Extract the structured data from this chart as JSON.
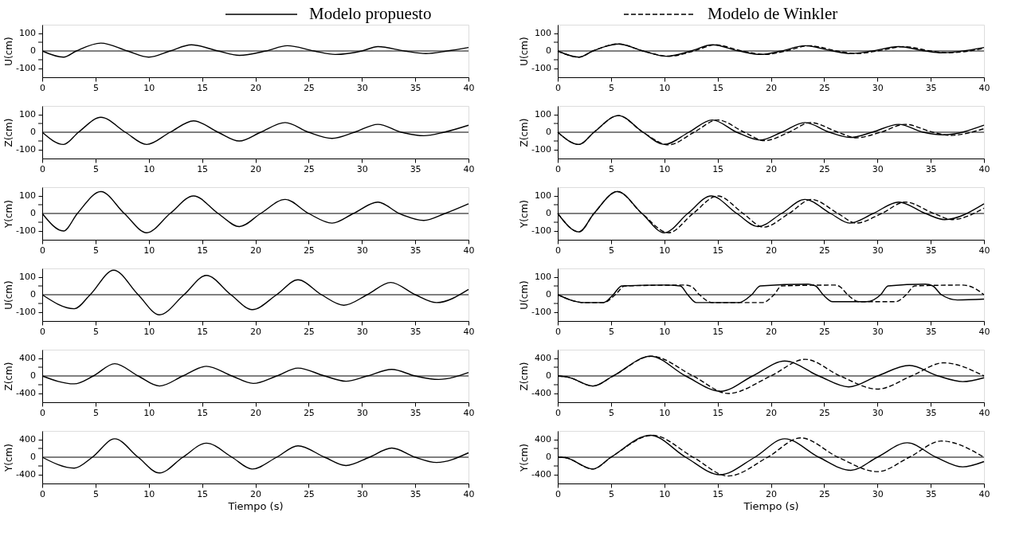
{
  "chart_data": [
    {
      "type": "line",
      "ylabel": "U(cm)",
      "xlim": [
        0,
        40
      ],
      "xticks": [
        0,
        5,
        10,
        15,
        20,
        25,
        30,
        35,
        40
      ],
      "ylim": [
        -150,
        150
      ],
      "yticks": [
        -100,
        {
          "value": -50,
          "label": null
        },
        0,
        {
          "value": 50,
          "label": null
        },
        100
      ],
      "grid": false,
      "ref_lines": [
        {
          "axis": "y",
          "value": 0
        }
      ],
      "series": [
        {
          "color": "#000000",
          "line_style": "solid",
          "x": [
            0,
            2,
            3.2,
            5.5,
            8,
            10,
            12,
            14,
            16.5,
            18.5,
            21,
            23,
            25.5,
            27.5,
            30,
            31.5,
            34,
            36,
            38,
            40
          ],
          "values": [
            0,
            -35,
            0,
            45,
            0,
            -35,
            0,
            35,
            0,
            -25,
            0,
            30,
            0,
            -20,
            0,
            25,
            0,
            -15,
            0,
            20
          ]
        }
      ]
    },
    {
      "type": "line",
      "ylabel": "U(cm)",
      "xlim": [
        0,
        40
      ],
      "xticks": [
        0,
        5,
        10,
        15,
        20,
        25,
        30,
        35,
        40
      ],
      "ylim": [
        -150,
        150
      ],
      "yticks": [
        -100,
        {
          "value": -50,
          "label": null
        },
        0,
        {
          "value": 50,
          "label": null
        },
        100
      ],
      "grid": false,
      "legend": "top",
      "ref_lines": [
        {
          "axis": "y",
          "value": 0
        }
      ],
      "series": [
        {
          "name": "Modelo propuesto",
          "color": "#000000",
          "line_style": "solid",
          "x": [
            0,
            2,
            3.3,
            5.7,
            8,
            10.2,
            12.5,
            14.5,
            17,
            19,
            21,
            23.2,
            25.8,
            27.5,
            29.5,
            32,
            34.5,
            36,
            40
          ],
          "values": [
            0,
            -35,
            0,
            40,
            0,
            -30,
            0,
            35,
            0,
            -20,
            0,
            30,
            0,
            -15,
            0,
            25,
            0,
            -10,
            20
          ]
        },
        {
          "name": "Modelo de Winkler",
          "color": "#000000",
          "line_style": "dashed",
          "x": [
            0,
            2,
            3.3,
            5.7,
            8,
            10.4,
            12.8,
            14.8,
            17.3,
            19.4,
            21.4,
            23.6,
            26.2,
            28,
            30,
            32.5,
            35,
            36.7,
            40
          ],
          "values": [
            0,
            -35,
            0,
            40,
            0,
            -30,
            0,
            35,
            0,
            -20,
            0,
            30,
            0,
            -15,
            0,
            25,
            0,
            -10,
            15
          ]
        }
      ]
    },
    {
      "type": "line",
      "ylabel": "Z(cm)",
      "xlim": [
        0,
        40
      ],
      "xticks": [
        0,
        5,
        10,
        15,
        20,
        25,
        30,
        35,
        40
      ],
      "ylim": [
        -150,
        150
      ],
      "yticks": [
        -100,
        {
          "value": -50,
          "label": null
        },
        0,
        {
          "value": 50,
          "label": null
        },
        100
      ],
      "grid": false,
      "ref_lines": [
        {
          "axis": "y",
          "value": 0
        }
      ],
      "series": [
        {
          "color": "#000000",
          "line_style": "solid",
          "x": [
            0,
            2,
            3.4,
            5.5,
            7.8,
            9.8,
            12,
            14.2,
            16.5,
            18.5,
            20.5,
            22.8,
            25,
            27.2,
            29.3,
            31.5,
            33.7,
            35.8,
            37.7,
            40
          ],
          "values": [
            0,
            -70,
            0,
            85,
            0,
            -70,
            0,
            65,
            0,
            -50,
            0,
            55,
            0,
            -35,
            0,
            45,
            0,
            -20,
            0,
            40
          ]
        }
      ]
    },
    {
      "type": "line",
      "ylabel": "Z(cm)",
      "xlim": [
        0,
        40
      ],
      "xticks": [
        0,
        5,
        10,
        15,
        20,
        25,
        30,
        35,
        40
      ],
      "ylim": [
        -150,
        150
      ],
      "yticks": [
        -100,
        {
          "value": -50,
          "label": null
        },
        0,
        {
          "value": 50,
          "label": null
        },
        100
      ],
      "grid": false,
      "ref_lines": [
        {
          "axis": "y",
          "value": 0
        }
      ],
      "series": [
        {
          "color": "#000000",
          "line_style": "solid",
          "x": [
            0,
            2,
            3.4,
            5.7,
            8,
            10,
            12.3,
            14.5,
            16.8,
            19,
            21,
            23.2,
            25.5,
            27.5,
            29.5,
            32,
            34.3,
            36.2,
            40
          ],
          "values": [
            0,
            -70,
            0,
            95,
            0,
            -70,
            0,
            70,
            0,
            -45,
            0,
            55,
            0,
            -30,
            0,
            45,
            0,
            -15,
            40
          ]
        },
        {
          "color": "#000000",
          "line_style": "dashed",
          "x": [
            0,
            2,
            3.4,
            5.7,
            8,
            10.4,
            12.8,
            15,
            17.5,
            19.4,
            21.7,
            23.7,
            26.3,
            28,
            30.3,
            32.6,
            35.2,
            36.8,
            40
          ],
          "values": [
            0,
            -70,
            0,
            95,
            0,
            -72,
            0,
            70,
            0,
            -48,
            0,
            55,
            0,
            -32,
            0,
            45,
            0,
            -18,
            20
          ]
        }
      ]
    },
    {
      "type": "line",
      "ylabel": "Y(cm)",
      "xlim": [
        0,
        40
      ],
      "xticks": [
        0,
        5,
        10,
        15,
        20,
        25,
        30,
        35,
        40
      ],
      "ylim": [
        -150,
        150
      ],
      "yticks": [
        -100,
        {
          "value": -50,
          "label": null
        },
        0,
        {
          "value": 50,
          "label": null
        },
        100
      ],
      "grid": false,
      "ref_lines": [
        {
          "axis": "y",
          "value": 0
        }
      ],
      "series": [
        {
          "color": "#000000",
          "line_style": "solid",
          "x": [
            0,
            2,
            3.3,
            5.5,
            7.7,
            9.8,
            12,
            14.2,
            16.5,
            18.5,
            20.5,
            22.8,
            25,
            27.2,
            29.2,
            31.5,
            33.5,
            35.8,
            37.8,
            40
          ],
          "values": [
            0,
            -100,
            0,
            125,
            0,
            -110,
            0,
            100,
            0,
            -75,
            0,
            80,
            0,
            -55,
            0,
            65,
            0,
            -40,
            0,
            55
          ]
        }
      ]
    },
    {
      "type": "line",
      "ylabel": "Y(cm)",
      "xlim": [
        0,
        40
      ],
      "xticks": [
        0,
        5,
        10,
        15,
        20,
        25,
        30,
        35,
        40
      ],
      "ylim": [
        -150,
        150
      ],
      "yticks": [
        -100,
        {
          "value": -50,
          "label": null
        },
        0,
        {
          "value": 50,
          "label": null
        },
        100
      ],
      "grid": false,
      "ref_lines": [
        {
          "axis": "y",
          "value": 0
        }
      ],
      "series": [
        {
          "color": "#000000",
          "line_style": "solid",
          "x": [
            0,
            2,
            3.4,
            5.6,
            7.9,
            10,
            12.2,
            14.4,
            16.8,
            18.8,
            21,
            23.2,
            25.6,
            27.4,
            29.6,
            32,
            34.5,
            36.3,
            40
          ],
          "values": [
            0,
            -105,
            0,
            125,
            0,
            -110,
            0,
            100,
            0,
            -75,
            0,
            80,
            0,
            -55,
            0,
            65,
            0,
            -35,
            55
          ]
        },
        {
          "color": "#000000",
          "line_style": "dashed",
          "x": [
            0,
            2,
            3.4,
            5.6,
            7.9,
            10.4,
            12.7,
            15,
            17.4,
            19.3,
            21.7,
            23.8,
            26.3,
            28,
            30.4,
            32.6,
            35.3,
            37,
            40
          ],
          "values": [
            0,
            -105,
            0,
            125,
            0,
            -110,
            0,
            100,
            0,
            -78,
            0,
            80,
            0,
            -55,
            0,
            65,
            0,
            -35,
            30
          ]
        }
      ]
    },
    {
      "type": "line",
      "ylabel": "U(cm)",
      "xlim": [
        0,
        40
      ],
      "xticks": [
        0,
        5,
        10,
        15,
        20,
        25,
        30,
        35,
        40
      ],
      "ylim": [
        -150,
        150
      ],
      "yticks": [
        -100,
        {
          "value": -50,
          "label": null
        },
        0,
        {
          "value": 50,
          "label": null
        },
        100
      ],
      "grid": false,
      "ref_lines": [
        {
          "axis": "y",
          "value": 0
        }
      ],
      "series": [
        {
          "color": "#000000",
          "line_style": "solid",
          "x": [
            0,
            3,
            4.5,
            6.7,
            9,
            11,
            13.3,
            15.4,
            17.7,
            19.7,
            22,
            24,
            26.2,
            28.3,
            30.5,
            32.7,
            35,
            37,
            40
          ],
          "values": [
            0,
            -80,
            0,
            140,
            0,
            -115,
            0,
            110,
            0,
            -85,
            0,
            85,
            0,
            -60,
            0,
            70,
            0,
            -45,
            30
          ]
        }
      ]
    },
    {
      "type": "line",
      "ylabel": "U(cm)",
      "xlim": [
        0,
        40
      ],
      "xticks": [
        0,
        5,
        10,
        15,
        20,
        25,
        30,
        35,
        40
      ],
      "ylim": [
        -150,
        150
      ],
      "yticks": [
        -100,
        {
          "value": -50,
          "label": null
        },
        0,
        {
          "value": 50,
          "label": null
        },
        100
      ],
      "grid": false,
      "ref_lines": [
        {
          "axis": "y",
          "value": 0
        }
      ],
      "series": [
        {
          "color": "#000000",
          "line_style": "solid",
          "x": [
            0,
            2.5,
            4.3,
            5.2,
            6,
            10,
            11.5,
            12.2,
            13,
            17,
            18.2,
            19,
            23.5,
            24.2,
            24.9,
            25.8,
            29,
            30.3,
            31,
            34.5,
            35.2,
            36,
            37.5,
            40
          ],
          "values": [
            0,
            -45,
            -45,
            0,
            50,
            55,
            50,
            0,
            -45,
            -45,
            0,
            50,
            60,
            50,
            0,
            -40,
            -40,
            0,
            50,
            60,
            50,
            0,
            -30,
            -25
          ]
        },
        {
          "color": "#000000",
          "line_style": "dashed",
          "x": [
            0,
            2.5,
            4.3,
            5.4,
            6.3,
            12,
            12.6,
            13.3,
            14.5,
            19.2,
            20.3,
            21,
            26,
            26.5,
            27.2,
            28.3,
            31.7,
            32.7,
            33.5,
            38,
            39,
            40
          ],
          "values": [
            0,
            -45,
            -45,
            0,
            50,
            55,
            45,
            0,
            -45,
            -45,
            0,
            50,
            55,
            45,
            0,
            -40,
            -40,
            0,
            50,
            55,
            40,
            0
          ]
        }
      ]
    },
    {
      "type": "line",
      "ylabel": "Z(cm)",
      "xlim": [
        0,
        40
      ],
      "xticks": [
        0,
        5,
        10,
        15,
        20,
        25,
        30,
        35,
        40
      ],
      "ylim": [
        -600,
        600
      ],
      "yticks": [
        -400,
        {
          "value": -200,
          "label": null
        },
        0,
        {
          "value": 200,
          "label": null
        },
        400
      ],
      "grid": false,
      "ref_lines": [
        {
          "axis": "y",
          "value": 0
        }
      ],
      "series": [
        {
          "color": "#000000",
          "line_style": "solid",
          "x": [
            0,
            3,
            4.8,
            6.8,
            9,
            11,
            13.2,
            15.4,
            17.8,
            19.8,
            22,
            24,
            26.5,
            28.5,
            30.5,
            32.8,
            35,
            37.2,
            40
          ],
          "values": [
            0,
            -180,
            0,
            280,
            0,
            -230,
            0,
            220,
            0,
            -170,
            0,
            180,
            0,
            -120,
            0,
            150,
            0,
            -80,
            80
          ]
        }
      ]
    },
    {
      "type": "line",
      "ylabel": "Z(cm)",
      "xlim": [
        0,
        40
      ],
      "xticks": [
        0,
        5,
        10,
        15,
        20,
        25,
        30,
        35,
        40
      ],
      "ylim": [
        -600,
        600
      ],
      "yticks": [
        -400,
        {
          "value": -200,
          "label": null
        },
        0,
        {
          "value": 200,
          "label": null
        },
        400
      ],
      "grid": false,
      "ref_lines": [
        {
          "axis": "y",
          "value": 0
        }
      ],
      "series": [
        {
          "color": "#000000",
          "line_style": "solid",
          "x": [
            0,
            1,
            3.3,
            5.2,
            8.7,
            12,
            15.3,
            18.3,
            21.3,
            24.5,
            27.3,
            30,
            33,
            35.7,
            38,
            40
          ],
          "values": [
            0,
            -30,
            -230,
            0,
            450,
            0,
            -350,
            0,
            340,
            0,
            -250,
            0,
            240,
            0,
            -130,
            -40
          ]
        },
        {
          "color": "#000000",
          "line_style": "dashed",
          "x": [
            0,
            1,
            3.3,
            5.2,
            8.8,
            12.7,
            16,
            20,
            23.2,
            26.5,
            30,
            33.2,
            36.2,
            40
          ],
          "values": [
            0,
            -30,
            -230,
            0,
            450,
            0,
            -400,
            0,
            380,
            0,
            -300,
            0,
            300,
            0
          ]
        }
      ]
    },
    {
      "type": "line",
      "ylabel": "Y(cm)",
      "xlabel": "Tiempo (s)",
      "xlim": [
        0,
        40
      ],
      "xticks": [
        0,
        5,
        10,
        15,
        20,
        25,
        30,
        35,
        40
      ],
      "ylim": [
        -600,
        600
      ],
      "yticks": [
        -400,
        {
          "value": -200,
          "label": null
        },
        0,
        {
          "value": 200,
          "label": null
        },
        400
      ],
      "grid": false,
      "ref_lines": [
        {
          "axis": "y",
          "value": 0
        }
      ],
      "series": [
        {
          "color": "#000000",
          "line_style": "solid",
          "x": [
            0,
            3,
            4.7,
            6.8,
            9,
            11,
            13.2,
            15.4,
            17.8,
            19.7,
            22,
            24,
            26.5,
            28.5,
            30.7,
            32.8,
            35,
            37,
            40
          ],
          "values": [
            0,
            -250,
            0,
            420,
            0,
            -360,
            0,
            320,
            0,
            -270,
            0,
            260,
            0,
            -190,
            0,
            210,
            0,
            -120,
            100
          ]
        }
      ]
    },
    {
      "type": "line",
      "ylabel": "Y(cm)",
      "xlabel": "Tiempo (s)",
      "xlim": [
        0,
        40
      ],
      "xticks": [
        0,
        5,
        10,
        15,
        20,
        25,
        30,
        35,
        40
      ],
      "ylim": [
        -600,
        600
      ],
      "yticks": [
        -400,
        {
          "value": -200,
          "label": null
        },
        0,
        {
          "value": 200,
          "label": null
        },
        400
      ],
      "grid": false,
      "ref_lines": [
        {
          "axis": "y",
          "value": 0
        }
      ],
      "series": [
        {
          "color": "#000000",
          "line_style": "solid",
          "x": [
            0,
            0.7,
            3.3,
            5,
            8.7,
            12,
            15.2,
            18.5,
            21.3,
            24.5,
            27.5,
            30,
            32.8,
            35.5,
            38,
            40
          ],
          "values": [
            0,
            -10,
            -270,
            0,
            500,
            0,
            -400,
            0,
            420,
            0,
            -300,
            0,
            330,
            0,
            -220,
            -100
          ]
        },
        {
          "color": "#000000",
          "line_style": "dashed",
          "x": [
            0,
            0.7,
            3.3,
            5,
            8.9,
            12.7,
            16,
            19.7,
            22.8,
            26.3,
            30,
            33,
            36,
            40
          ],
          "values": [
            0,
            -10,
            -270,
            0,
            500,
            0,
            -430,
            0,
            440,
            0,
            -330,
            0,
            370,
            0
          ]
        }
      ]
    }
  ]
}
